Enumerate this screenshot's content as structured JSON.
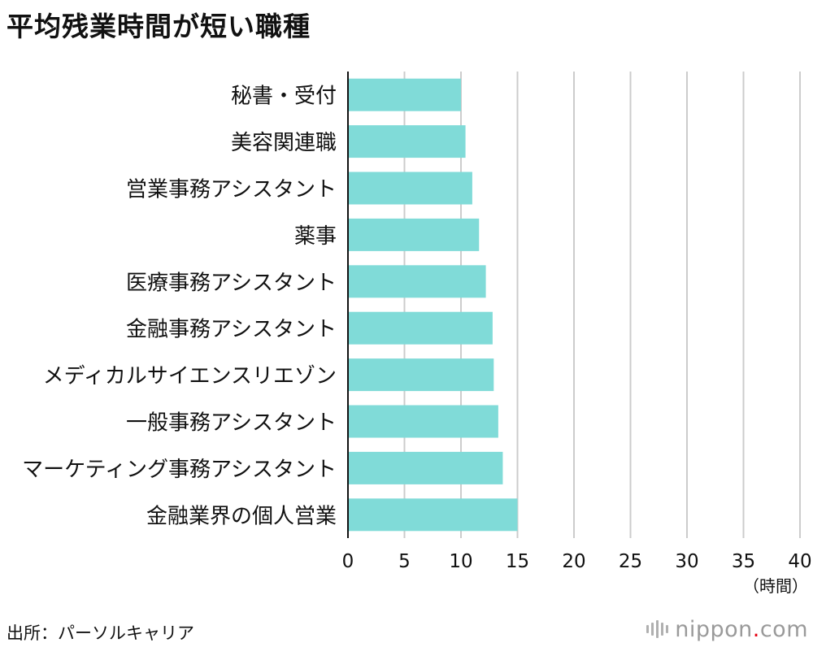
{
  "chart_data": {
    "type": "bar",
    "orientation": "horizontal",
    "title": "平均残業時間が短い職種",
    "categories": [
      "秘書・受付",
      "美容関連職",
      "営業事務アシスタント",
      "薬事",
      "医療事務アシスタント",
      "金融事務アシスタント",
      "メディカルサイエンスリエゾン",
      "一般事務アシスタント",
      "マーケティング事務アシスタント",
      "金融業界の個人営業"
    ],
    "values": [
      10.0,
      10.4,
      11.0,
      11.6,
      12.2,
      12.8,
      12.9,
      13.3,
      13.7,
      15.0
    ],
    "xlim": [
      0,
      40
    ],
    "xticks": [
      "0",
      "5",
      "10",
      "15",
      "20",
      "25",
      "30",
      "35",
      "40"
    ],
    "xlabel": "（時間）",
    "ylabel": "",
    "grid": true,
    "colors": {
      "bar": "#80dbd8",
      "grid": "#cccccc",
      "axis": "#111111"
    }
  },
  "footer": {
    "source": "出所：パーソルキャリア",
    "brand_name": "nippon",
    "brand_dot": ".",
    "brand_tld": "com"
  }
}
